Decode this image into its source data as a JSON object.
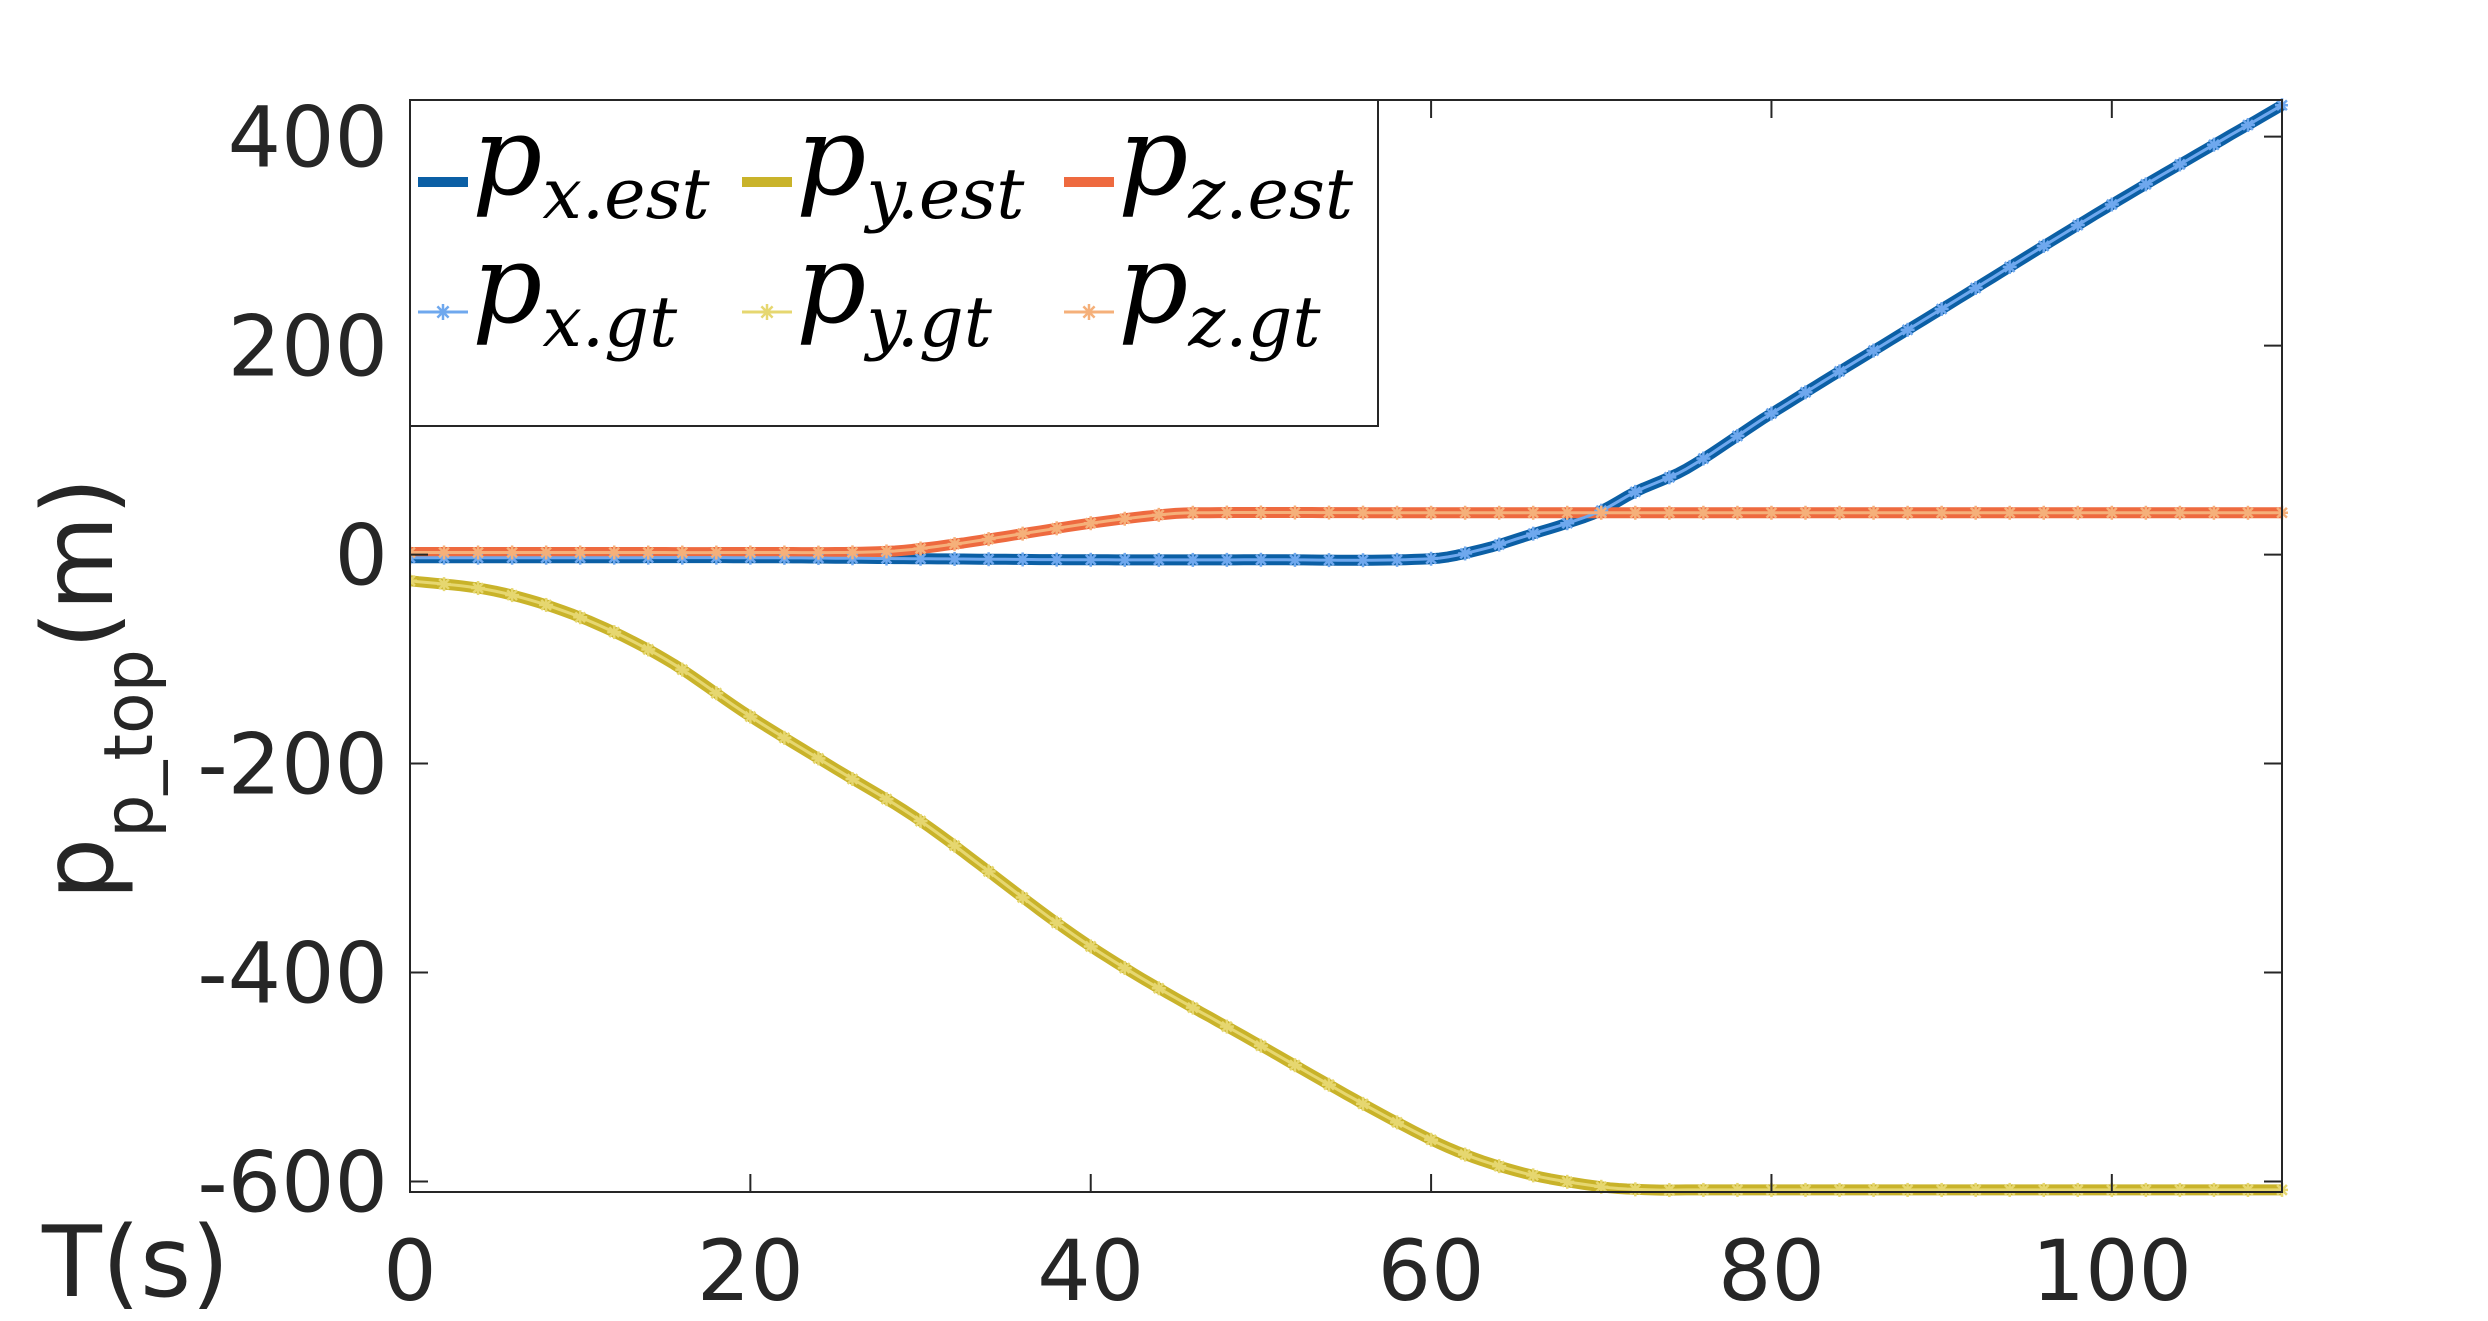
{
  "chart_data": {
    "type": "line",
    "xlabel": "T(s)",
    "ylabel": {
      "base": "p",
      "subscript": "p_top",
      "unit": "(m)"
    },
    "xlim": [
      0,
      110
    ],
    "ylim": [
      -610,
      435
    ],
    "xticks": [
      0,
      20,
      40,
      60,
      80,
      100
    ],
    "yticks": [
      400,
      200,
      0,
      -200,
      -400,
      -600
    ],
    "xtick_labels": [
      "0",
      "20",
      "40",
      "60",
      "80",
      "100"
    ],
    "ytick_labels": [
      "400",
      "200",
      "0",
      "-200",
      "-400",
      "-600"
    ],
    "grid": false,
    "box": true,
    "legend_position": "top-left",
    "series": [
      {
        "name": "p_{x.est}",
        "label_base": "p",
        "label_sub": "x.est",
        "color": "#0b5fa5",
        "style": "solid",
        "x": [
          0,
          10,
          20,
          30,
          40,
          50,
          60,
          63,
          66,
          68,
          70,
          72,
          75,
          80,
          90,
          100,
          110
        ],
        "y": [
          -3,
          -3,
          -3,
          -4,
          -5,
          -5,
          -4,
          5,
          20,
          30,
          42,
          60,
          82,
          135,
          235,
          335,
          430
        ]
      },
      {
        "name": "p_{y.est}",
        "label_base": "p",
        "label_sub": "y.est",
        "color": "#c9b32a",
        "style": "solid",
        "x": [
          0,
          5,
          10,
          15,
          20,
          25,
          30,
          40,
          50,
          60,
          65,
          70,
          73,
          75,
          80,
          90,
          100,
          110
        ],
        "y": [
          -25,
          -35,
          -60,
          -100,
          -155,
          -205,
          -255,
          -375,
          -470,
          -560,
          -590,
          -605,
          -608,
          -608,
          -608,
          -608,
          -608,
          -608
        ]
      },
      {
        "name": "p_{z.est}",
        "label_base": "p",
        "label_sub": "z.est",
        "color": "#ee6a3f",
        "style": "solid",
        "x": [
          0,
          10,
          20,
          28,
          32,
          36,
          40,
          44,
          46,
          60,
          80,
          100,
          110
        ],
        "y": [
          2,
          2,
          2,
          3,
          10,
          20,
          30,
          38,
          40,
          40,
          40,
          40,
          40
        ]
      },
      {
        "name": "p_{x.gt}",
        "label_base": "p",
        "label_sub": "x.gt",
        "color": "#6fa8ee",
        "style": "star",
        "x": [
          0,
          10,
          20,
          30,
          40,
          50,
          60,
          63,
          66,
          68,
          70,
          72,
          75,
          80,
          90,
          100,
          110
        ],
        "y": [
          -3,
          -3,
          -3,
          -4,
          -5,
          -5,
          -4,
          5,
          20,
          30,
          42,
          60,
          82,
          135,
          235,
          335,
          430
        ]
      },
      {
        "name": "p_{y.gt}",
        "label_base": "p",
        "label_sub": "y.gt",
        "color": "#e6d770",
        "style": "star",
        "x": [
          0,
          5,
          10,
          15,
          20,
          25,
          30,
          40,
          50,
          60,
          65,
          70,
          73,
          75,
          80,
          90,
          100,
          110
        ],
        "y": [
          -25,
          -35,
          -60,
          -100,
          -155,
          -205,
          -255,
          -375,
          -470,
          -560,
          -590,
          -605,
          -608,
          -608,
          -608,
          -608,
          -608,
          -608
        ]
      },
      {
        "name": "p_{z.gt}",
        "label_base": "p",
        "label_sub": "z.gt",
        "color": "#f5b07a",
        "style": "star",
        "x": [
          0,
          10,
          20,
          28,
          32,
          36,
          40,
          44,
          46,
          60,
          80,
          100,
          110
        ],
        "y": [
          2,
          2,
          2,
          3,
          10,
          20,
          30,
          38,
          40,
          40,
          40,
          40,
          40
        ]
      }
    ]
  }
}
